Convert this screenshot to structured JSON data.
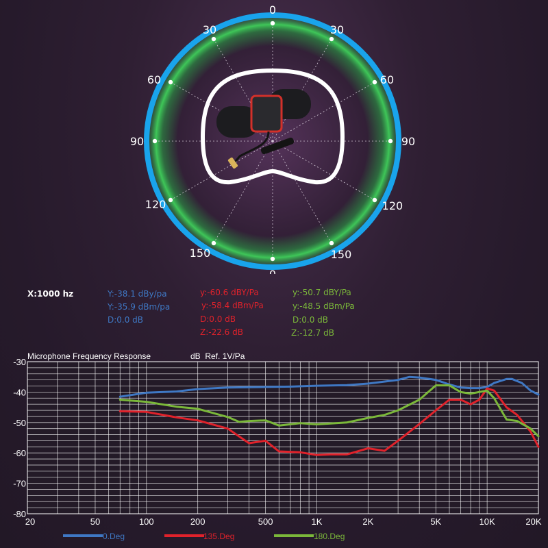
{
  "polar": {
    "top_labels": [
      "0",
      "30",
      "30",
      "60",
      "60",
      "90",
      "90",
      "120",
      "120",
      "150",
      "150",
      "0"
    ]
  },
  "readouts": {
    "x": "X:1000 hz",
    "blue": [
      "Y:-38.1 dBy/pa",
      "Y:-35.9 dBm/pa",
      "D:0.0 dB"
    ],
    "red": [
      "y:-60.6 dBY/Pa",
      "y:-58.4 dBm/Pa",
      "D:0.0 dB",
      "Z:-22.6 dB"
    ],
    "green": [
      "y:-50.7 dBY/Pa",
      "y:-48.5 dBm/Pa",
      "D:0.0 dB",
      "Z:-12.7 dB"
    ]
  },
  "colors": {
    "blue": "#3f78c4",
    "red": "#e0222b",
    "green": "#7bb83a",
    "polar_ring": "#19a4ec",
    "polar_glow": "#2fa84a"
  },
  "chart_data": {
    "type": "line",
    "title": "Microphone Frequency Response",
    "unit_label": "dB  Ref. 1V/Pa",
    "x_scale": "log",
    "xlim": [
      20,
      20000
    ],
    "ylim": [
      -80,
      -30
    ],
    "x_ticks": [
      20,
      50,
      100,
      200,
      500,
      1000,
      2000,
      5000,
      10000,
      20000
    ],
    "x_tick_labels": [
      "20",
      "50",
      "100",
      "200",
      "500",
      "1K",
      "2K",
      "5K",
      "10K",
      "20K"
    ],
    "y_ticks": [
      -30,
      -40,
      -50,
      -60,
      -70,
      -80
    ],
    "y_tick_labels": [
      "-30",
      "-40",
      "-50",
      "-60",
      "-70",
      "-80"
    ],
    "grid": true,
    "legend_position": "bottom",
    "series": [
      {
        "name": "0.Deg",
        "color": "#3f78c4",
        "points": [
          [
            70,
            -41.5
          ],
          [
            100,
            -40.2
          ],
          [
            150,
            -39.8
          ],
          [
            200,
            -39.0
          ],
          [
            300,
            -38.5
          ],
          [
            500,
            -38.3
          ],
          [
            700,
            -38.2
          ],
          [
            1000,
            -37.9
          ],
          [
            1500,
            -37.7
          ],
          [
            2000,
            -37.2
          ],
          [
            3000,
            -36.0
          ],
          [
            3500,
            -35.0
          ],
          [
            4000,
            -35.2
          ],
          [
            5000,
            -36.0
          ],
          [
            6000,
            -37.5
          ],
          [
            7000,
            -38.5
          ],
          [
            8000,
            -38.7
          ],
          [
            9000,
            -38.7
          ],
          [
            10000,
            -38.3
          ],
          [
            11000,
            -37.0
          ],
          [
            13000,
            -35.7
          ],
          [
            14000,
            -35.7
          ],
          [
            16000,
            -37.0
          ],
          [
            18000,
            -39.5
          ],
          [
            20000,
            -40.8
          ]
        ]
      },
      {
        "name": "135.Deg",
        "color": "#e0222b",
        "points": [
          [
            70,
            -46.3
          ],
          [
            100,
            -46.5
          ],
          [
            150,
            -48.3
          ],
          [
            200,
            -49.3
          ],
          [
            300,
            -52.0
          ],
          [
            400,
            -56.8
          ],
          [
            500,
            -56.0
          ],
          [
            600,
            -59.5
          ],
          [
            800,
            -59.8
          ],
          [
            1000,
            -60.7
          ],
          [
            1200,
            -60.5
          ],
          [
            1500,
            -60.5
          ],
          [
            2000,
            -58.5
          ],
          [
            2500,
            -59.3
          ],
          [
            3000,
            -56.0
          ],
          [
            4000,
            -50.5
          ],
          [
            5000,
            -46.0
          ],
          [
            6000,
            -42.5
          ],
          [
            7000,
            -42.5
          ],
          [
            8000,
            -44.0
          ],
          [
            9000,
            -42.5
          ],
          [
            10000,
            -38.8
          ],
          [
            11000,
            -39.5
          ],
          [
            13000,
            -45.0
          ],
          [
            15000,
            -47.5
          ],
          [
            18000,
            -53.0
          ],
          [
            20000,
            -58.0
          ]
        ]
      },
      {
        "name": "180.Deg",
        "color": "#7bb83a",
        "points": [
          [
            70,
            -42.5
          ],
          [
            100,
            -43.2
          ],
          [
            150,
            -44.8
          ],
          [
            200,
            -45.5
          ],
          [
            300,
            -48.2
          ],
          [
            350,
            -49.8
          ],
          [
            400,
            -49.5
          ],
          [
            500,
            -49.3
          ],
          [
            600,
            -51.0
          ],
          [
            800,
            -50.2
          ],
          [
            1000,
            -50.6
          ],
          [
            1500,
            -50.0
          ],
          [
            2000,
            -48.5
          ],
          [
            2500,
            -47.5
          ],
          [
            3000,
            -46.0
          ],
          [
            4000,
            -42.5
          ],
          [
            5000,
            -37.8
          ],
          [
            6000,
            -37.8
          ],
          [
            7000,
            -40.0
          ],
          [
            8000,
            -40.5
          ],
          [
            10000,
            -39.5
          ],
          [
            11000,
            -42.0
          ],
          [
            13000,
            -49.0
          ],
          [
            15000,
            -49.5
          ],
          [
            18000,
            -52.0
          ],
          [
            20000,
            -54.5
          ]
        ]
      }
    ]
  }
}
